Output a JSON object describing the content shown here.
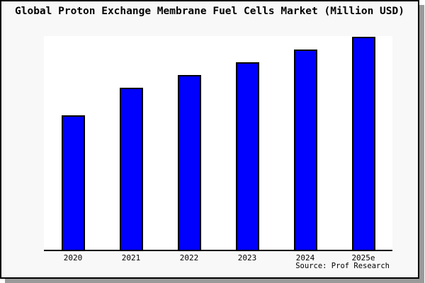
{
  "title": "Global Proton Exchange Membrane Fuel Cells Market (Million USD)",
  "source": "Source: Prof Research",
  "chart_data": {
    "type": "bar",
    "title": "Global Proton Exchange Membrane Fuel Cells Market (Million USD)",
    "categories": [
      "2020",
      "2021",
      "2022",
      "2023",
      "2024",
      "2025e"
    ],
    "values": [
      63,
      76,
      82,
      88,
      94,
      100
    ],
    "values_note": "relative bar heights, tallest bar (2025e) = 100; no y-axis scale labels are shown in the chart",
    "xlabel": "",
    "ylabel": "",
    "ylim": [
      0,
      100
    ],
    "grid": false,
    "legend": false,
    "annotations": [
      "Source: Prof Research"
    ],
    "colors": {
      "bar_fill": "#0000ff",
      "bar_border": "#000000",
      "plot_bg": "#ffffff",
      "canvas_bg": "#f8f8f8",
      "axis": "#000000",
      "shadow": "#9a9a9a",
      "text": "#000000"
    }
  }
}
